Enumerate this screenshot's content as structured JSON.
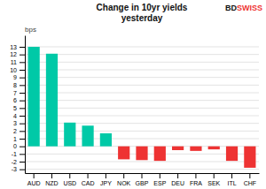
{
  "chart_data": {
    "type": "bar",
    "title": "Change in 10yr yields",
    "subtitle": "yesterday",
    "ylabel": "bps",
    "categories": [
      "AUD",
      "NZD",
      "USD",
      "CAD",
      "JPY",
      "NOK",
      "GBP",
      "ESP",
      "DEU",
      "FRA",
      "SEK",
      "ITL",
      "CHF"
    ],
    "values": [
      13,
      12.1,
      3.1,
      2.7,
      1.7,
      -1.7,
      -1.8,
      -1.9,
      -0.5,
      -0.6,
      -0.4,
      -1.9,
      -2.8
    ],
    "colors": [
      "#00C9A7",
      "#00C9A7",
      "#00C9A7",
      "#00C9A7",
      "#00C9A7",
      "#EE3333",
      "#EE3333",
      "#EE3333",
      "#EE3333",
      "#EE3333",
      "#EE3333",
      "#EE3333",
      "#EE3333"
    ],
    "ylim": [
      -3.5,
      14.5
    ],
    "yticks": [
      -3,
      -2,
      -1,
      0,
      1,
      2,
      3,
      4,
      5,
      6,
      7,
      8,
      9,
      10,
      11,
      12,
      13
    ],
    "grid": true,
    "annotations": [
      {
        "text": "BD",
        "color": "#111111"
      },
      {
        "text": "SWISS",
        "color": "#EE3333"
      }
    ]
  }
}
